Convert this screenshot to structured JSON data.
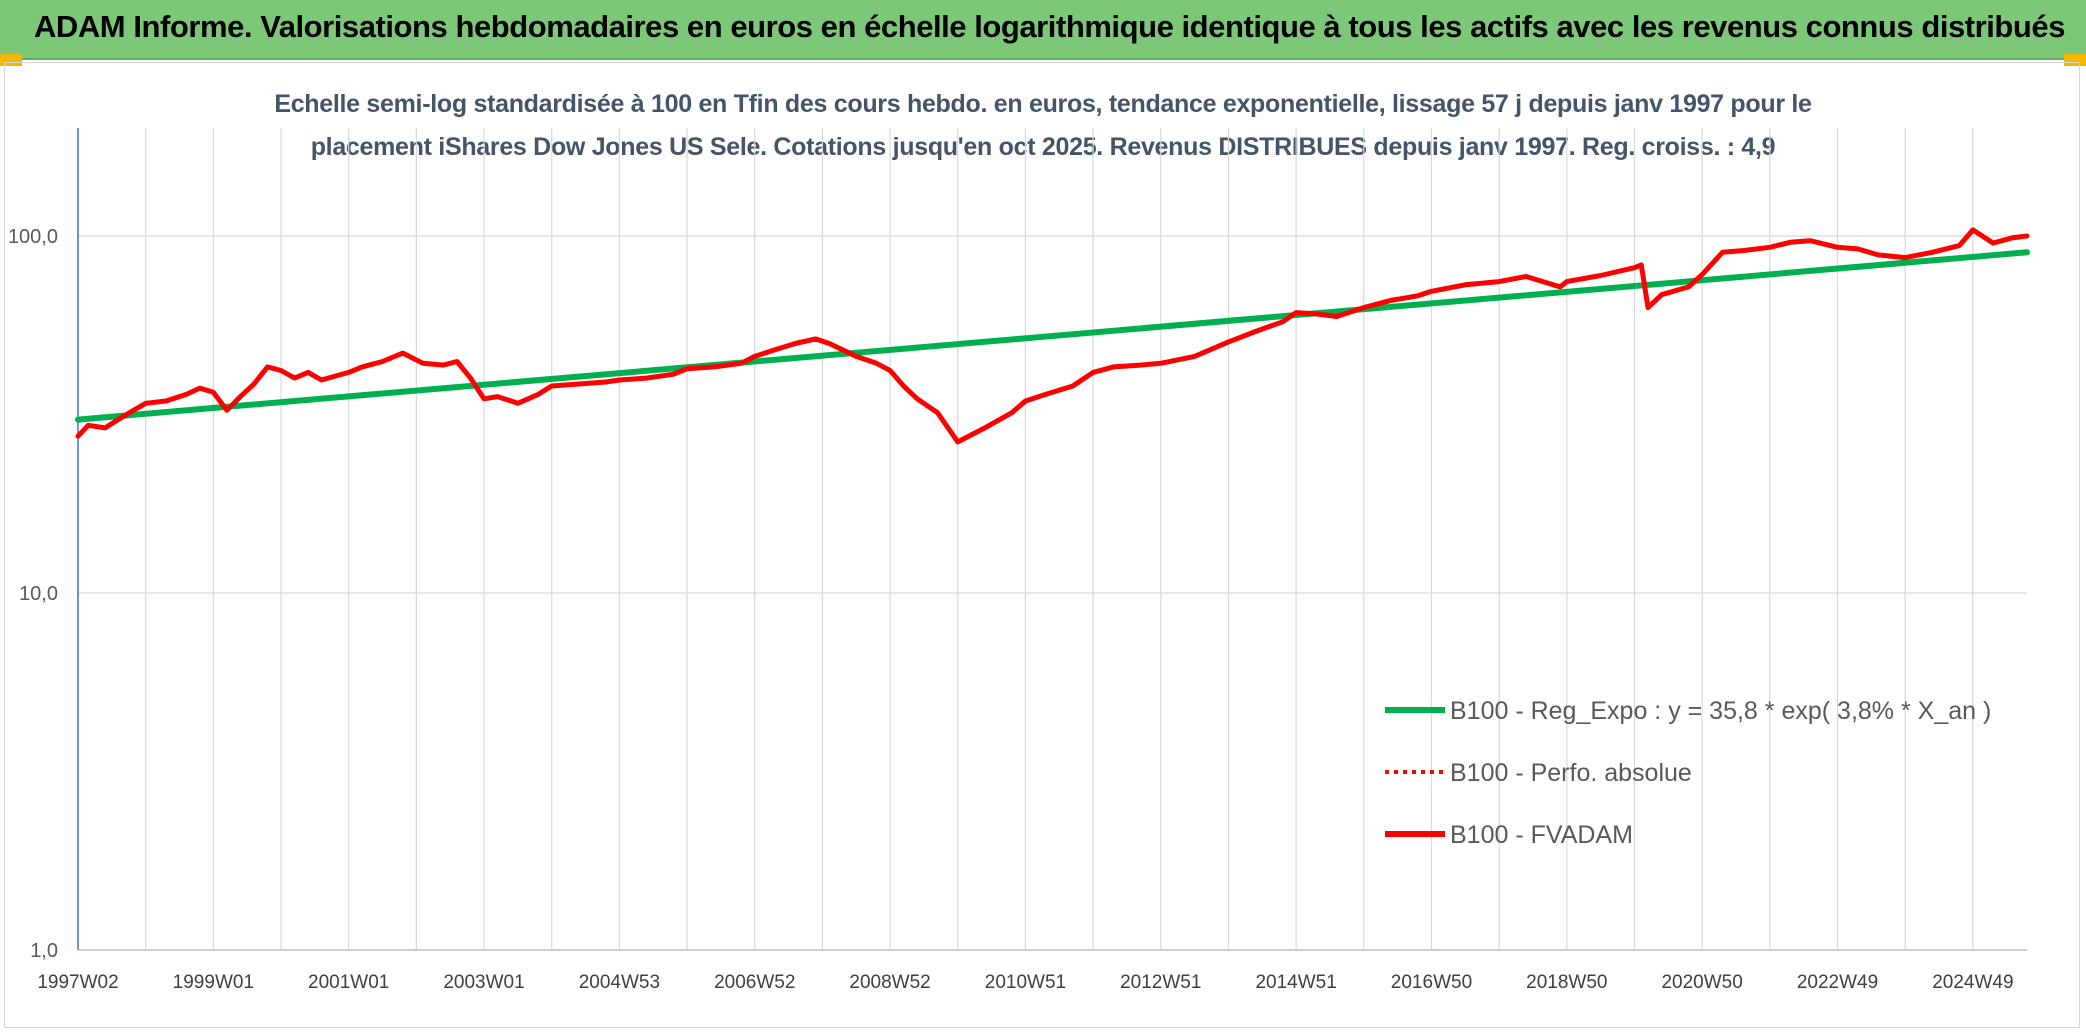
{
  "banner": {
    "title": "ADAM Informe. Valorisations hebdomadaires en euros en échelle logarithmique identique à tous les actifs avec les revenus connus distribués"
  },
  "chart_data": {
    "type": "line",
    "title_line1": "Echelle semi-log standardisée à 100 en Tfin des cours hebdo. en euros, tendance exponentielle, lissage 57 j depuis janv 1997 pour le",
    "title_line2": "placement iShares Dow Jones US Sele. Cotations jusqu'en oct 2025. Revenus DISTRIBUES depuis janv 1997. Reg. croiss. : 4,9",
    "yscale": "log",
    "ylim": [
      1,
      100
    ],
    "y_ticks": [
      {
        "value": 100,
        "label": "100,0"
      },
      {
        "value": 10,
        "label": "10,0"
      },
      {
        "value": 1,
        "label": "1,0"
      }
    ],
    "xlim": [
      1997.0,
      2025.8
    ],
    "x_ticks": [
      {
        "value": 1997.0,
        "label": "1997W02"
      },
      {
        "value": 1999.0,
        "label": "1999W01"
      },
      {
        "value": 2001.0,
        "label": "2001W01"
      },
      {
        "value": 2003.0,
        "label": "2003W01"
      },
      {
        "value": 2005.0,
        "label": "2004W53"
      },
      {
        "value": 2007.0,
        "label": "2006W52"
      },
      {
        "value": 2009.0,
        "label": "2008W52"
      },
      {
        "value": 2011.0,
        "label": "2010W51"
      },
      {
        "value": 2013.0,
        "label": "2012W51"
      },
      {
        "value": 2015.0,
        "label": "2014W51"
      },
      {
        "value": 2017.0,
        "label": "2016W50"
      },
      {
        "value": 2019.0,
        "label": "2018W50"
      },
      {
        "value": 2021.0,
        "label": "2020W50"
      },
      {
        "value": 2023.0,
        "label": "2022W49"
      },
      {
        "value": 2025.0,
        "label": "2024W49"
      }
    ],
    "vgrid": [
      1998.0,
      2000.0,
      2002.0,
      2004.0,
      2006.0,
      2008.0,
      2010.0,
      2012.0,
      2014.0,
      2016.0,
      2018.0,
      2020.0,
      2022.0,
      2024.0
    ],
    "grid": true,
    "legend_position": "right",
    "series": [
      {
        "name": "B100 - Reg_Expo : y = 35,8 * exp( 3,8% *  X_an )",
        "color": "#00b050",
        "style": "solid",
        "x": [
          1997.0,
          2025.8
        ],
        "y": [
          30.6,
          90.0
        ]
      },
      {
        "name": "B100 - Perfo. absolue",
        "color": "#ff0000",
        "style": "dotted",
        "x": [],
        "y": []
      },
      {
        "name": "B100 - FVADAM",
        "color": "#ff0000",
        "style": "solid",
        "x": [
          1997.0,
          1997.15,
          1997.4,
          1997.7,
          1998.0,
          1998.3,
          1998.6,
          1998.8,
          1999.0,
          1999.2,
          1999.4,
          1999.6,
          1999.8,
          2000.0,
          2000.2,
          2000.4,
          2000.6,
          2000.8,
          2001.0,
          2001.2,
          2001.5,
          2001.8,
          2002.1,
          2002.4,
          2002.6,
          2002.8,
          2003.0,
          2003.2,
          2003.5,
          2003.8,
          2004.0,
          2004.4,
          2004.8,
          2005.0,
          2005.4,
          2005.8,
          2006.0,
          2006.4,
          2006.8,
          2007.0,
          2007.3,
          2007.6,
          2007.9,
          2008.1,
          2008.3,
          2008.5,
          2008.8,
          2009.0,
          2009.2,
          2009.4,
          2009.7,
          2010.0,
          2010.4,
          2010.8,
          2011.0,
          2011.3,
          2011.7,
          2012.0,
          2012.3,
          2012.7,
          2013.0,
          2013.5,
          2014.0,
          2014.4,
          2014.8,
          2015.0,
          2015.3,
          2015.6,
          2016.0,
          2016.4,
          2016.8,
          2017.0,
          2017.5,
          2018.0,
          2018.4,
          2018.9,
          2019.0,
          2019.5,
          2020.0,
          2020.1,
          2020.2,
          2020.4,
          2020.8,
          2021.0,
          2021.3,
          2021.6,
          2022.0,
          2022.3,
          2022.6,
          2023.0,
          2023.3,
          2023.6,
          2024.0,
          2024.4,
          2024.8,
          2025.0,
          2025.3,
          2025.6,
          2025.8
        ],
        "y": [
          27.5,
          29.5,
          29.0,
          31.5,
          34.0,
          34.5,
          36.0,
          37.5,
          36.5,
          32.5,
          35.5,
          38.5,
          43.0,
          42.0,
          40.0,
          41.5,
          39.5,
          40.5,
          41.5,
          43.0,
          44.5,
          47.0,
          44.0,
          43.5,
          44.5,
          40.0,
          35.0,
          35.5,
          34.0,
          36.0,
          38.0,
          38.5,
          39.0,
          39.5,
          40.0,
          41.0,
          42.5,
          43.0,
          44.0,
          46.0,
          48.0,
          50.0,
          51.5,
          50.0,
          48.0,
          46.0,
          44.0,
          42.0,
          38.0,
          35.0,
          32.0,
          26.5,
          29.0,
          32.0,
          34.5,
          36.0,
          38.0,
          41.5,
          43.0,
          43.5,
          44.0,
          46.0,
          50.5,
          54.0,
          57.5,
          61.0,
          60.5,
          59.5,
          63.0,
          66.0,
          68.0,
          70.0,
          73.0,
          74.5,
          77.0,
          72.0,
          74.5,
          77.5,
          81.5,
          83.0,
          63.0,
          68.5,
          72.0,
          78.0,
          90.0,
          91.0,
          93.0,
          96.0,
          97.0,
          93.0,
          92.0,
          88.5,
          87.0,
          90.0,
          94.0,
          104.0,
          95.5,
          99.0,
          100.0
        ]
      }
    ]
  }
}
